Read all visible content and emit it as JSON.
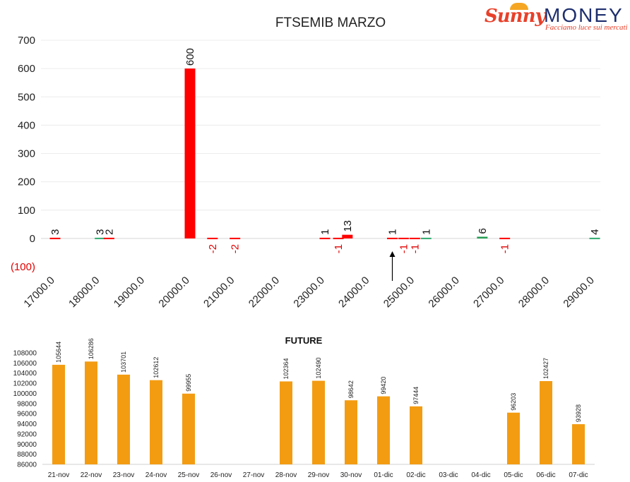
{
  "logo": {
    "brand_left": "Sunny",
    "brand_right": "MONEY",
    "tagline": "Facciamo luce sui mercati"
  },
  "chart_data": [
    {
      "type": "bar",
      "title": "FTSEMIB MARZO",
      "xlabel": "",
      "ylabel": "",
      "ylim": [
        -100,
        700
      ],
      "yticks": [
        "(100)",
        "0",
        "100",
        "200",
        "300",
        "400",
        "500",
        "600",
        "700"
      ],
      "xlim": [
        17000,
        29000
      ],
      "xticks": [
        "17000.0",
        "18000.0",
        "19000.0",
        "20000.0",
        "21000.0",
        "22000.0",
        "23000.0",
        "24000.0",
        "25000.0",
        "26000.0",
        "27000.0",
        "28000.0",
        "29000.0"
      ],
      "grid": true,
      "marker": {
        "strike": 24500,
        "type": "arrow-up"
      },
      "bars": [
        {
          "strike": 17000,
          "value": 3,
          "label": "3",
          "color": "#ff0000"
        },
        {
          "strike": 18000,
          "value": 3,
          "label": "3",
          "color": "#2eaa6e"
        },
        {
          "strike": 18200,
          "value": 2,
          "label": "2",
          "color": "#ff0000"
        },
        {
          "strike": 20000,
          "value": 600,
          "label": "600",
          "color": "#ff0000"
        },
        {
          "strike": 20500,
          "value": -2,
          "label": "-2",
          "color": "#ff0000"
        },
        {
          "strike": 21000,
          "value": -2,
          "label": "-2",
          "color": "#ff0000"
        },
        {
          "strike": 23000,
          "value": 1,
          "label": "1",
          "color": "#ff0000"
        },
        {
          "strike": 23300,
          "value": -1,
          "label": "-1",
          "color": "#ff0000"
        },
        {
          "strike": 23500,
          "value": 13,
          "label": "13",
          "color": "#ff0000"
        },
        {
          "strike": 24500,
          "value": 1,
          "label": "1",
          "color": "#ff0000"
        },
        {
          "strike": 24750,
          "value": -1,
          "label": "-1",
          "color": "#ff0000"
        },
        {
          "strike": 25000,
          "value": -1,
          "label": "-1",
          "color": "#ff0000"
        },
        {
          "strike": 25250,
          "value": 1,
          "label": "1",
          "color": "#2eaa6e"
        },
        {
          "strike": 26500,
          "value": 6,
          "label": "6",
          "color": "#1f9a4f"
        },
        {
          "strike": 27000,
          "value": -1,
          "label": "-1",
          "color": "#ff0000"
        },
        {
          "strike": 29000,
          "value": 4,
          "label": "4",
          "color": "#2eaa6e"
        }
      ]
    },
    {
      "type": "bar",
      "title": "FUTURE",
      "xlabel": "",
      "ylabel": "",
      "ylim": [
        86000,
        108000
      ],
      "yticks": [
        "86000",
        "88000",
        "90000",
        "92000",
        "94000",
        "96000",
        "98000",
        "100000",
        "102000",
        "104000",
        "106000",
        "108000"
      ],
      "grid": false,
      "color": "#f39c12",
      "categories": [
        "21-nov",
        "22-nov",
        "23-nov",
        "24-nov",
        "25-nov",
        "26-nov",
        "27-nov",
        "28-nov",
        "29-nov",
        "30-nov",
        "01-dic",
        "02-dic",
        "03-dic",
        "04-dic",
        "05-dic",
        "06-dic",
        "07-dic"
      ],
      "values": [
        105644,
        106286,
        103701,
        102612,
        99955,
        null,
        null,
        102364,
        102490,
        98642,
        99420,
        97444,
        null,
        null,
        96203,
        102427,
        93928
      ],
      "labels": [
        "105644",
        "106286",
        "103701",
        "102612",
        "99955",
        "",
        "",
        "102364",
        "102490",
        "98642",
        "99420",
        "97444",
        "",
        "",
        "96203",
        "102427",
        "93928"
      ]
    }
  ]
}
